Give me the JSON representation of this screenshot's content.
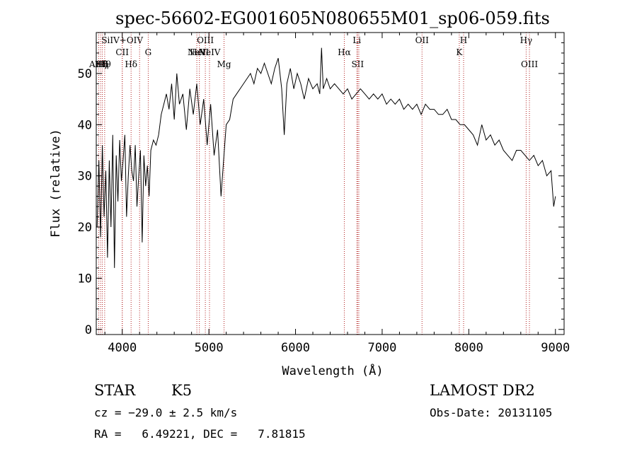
{
  "chart_data": {
    "type": "line",
    "title": "spec-56602-EG001605N080655M01_sp06-059.fits",
    "xlabel": "Wavelength (Å)",
    "ylabel": "Flux (relative)",
    "xlim": [
      3700,
      9100
    ],
    "ylim": [
      -1,
      58
    ],
    "xticks": [
      4000,
      5000,
      6000,
      7000,
      8000,
      9000
    ],
    "yticks": [
      0,
      10,
      20,
      30,
      40,
      50
    ],
    "grid": false,
    "line_color": "#000000",
    "marker_color": "#b22222",
    "series": [
      {
        "x": [
          3710,
          3730,
          3750,
          3770,
          3790,
          3810,
          3830,
          3850,
          3870,
          3890,
          3910,
          3930,
          3950,
          3970,
          3990,
          4010,
          4030,
          4050,
          4070,
          4090,
          4110,
          4130,
          4150,
          4170,
          4190,
          4210,
          4230,
          4250,
          4270,
          4290,
          4310,
          4330,
          4360,
          4390,
          4420,
          4450,
          4480,
          4510,
          4540,
          4570,
          4600,
          4630,
          4660,
          4700,
          4740,
          4780,
          4820,
          4860,
          4900,
          4940,
          4980,
          5020,
          5060,
          5100,
          5140,
          5170,
          5200,
          5240,
          5280,
          5320,
          5360,
          5400,
          5440,
          5480,
          5520,
          5560,
          5600,
          5640,
          5680,
          5720,
          5760,
          5800,
          5840,
          5870,
          5900,
          5940,
          5980,
          6020,
          6060,
          6100,
          6150,
          6200,
          6250,
          6280,
          6300,
          6320,
          6360,
          6400,
          6450,
          6500,
          6550,
          6600,
          6650,
          6700,
          6750,
          6800,
          6850,
          6900,
          6950,
          7000,
          7050,
          7100,
          7150,
          7200,
          7250,
          7300,
          7350,
          7400,
          7450,
          7500,
          7550,
          7600,
          7650,
          7700,
          7750,
          7800,
          7850,
          7900,
          7950,
          8000,
          8050,
          8100,
          8150,
          8200,
          8250,
          8300,
          8350,
          8400,
          8450,
          8500,
          8550,
          8600,
          8650,
          8700,
          8750,
          8800,
          8850,
          8900,
          8950,
          8980,
          9000
        ],
        "values": [
          20,
          33,
          18,
          36,
          22,
          31,
          14,
          33,
          20,
          38,
          12,
          34,
          25,
          37,
          29,
          33,
          38,
          22,
          30,
          36,
          31,
          29,
          36,
          24,
          30,
          35,
          17,
          34,
          28,
          32,
          26,
          35,
          37,
          36,
          38,
          42,
          44,
          46,
          43,
          48,
          41,
          50,
          44,
          46,
          39,
          47,
          42,
          48,
          40,
          45,
          36,
          44,
          34,
          39,
          26,
          33,
          40,
          41,
          45,
          46,
          47,
          48,
          49,
          50,
          48,
          51,
          50,
          52,
          50,
          48,
          51,
          53,
          47,
          38,
          48,
          51,
          47,
          50,
          48,
          45,
          49,
          47,
          48,
          46,
          55,
          47,
          49,
          47,
          48,
          47,
          46,
          47,
          45,
          46,
          47,
          46,
          45,
          46,
          45,
          46,
          44,
          45,
          44,
          45,
          43,
          44,
          43,
          44,
          42,
          44,
          43,
          43,
          42,
          42,
          43,
          41,
          41,
          40,
          40,
          39,
          38,
          36,
          40,
          37,
          38,
          36,
          37,
          35,
          34,
          33,
          35,
          35,
          34,
          33,
          34,
          32,
          33,
          30,
          31,
          24,
          26
        ]
      }
    ],
    "line_markers": [
      {
        "x": 3728,
        "label": "AlIII",
        "row": "low"
      },
      {
        "x": 3750,
        "label": "Hζ",
        "row": "low"
      },
      {
        "x": 3770,
        "label": "Hη",
        "row": "low"
      },
      {
        "x": 3797,
        "label": "Hθ",
        "row": "low"
      },
      {
        "x": 4000,
        "label": "SiIV+OIV",
        "row": "top"
      },
      {
        "x": 4000,
        "label": "CII",
        "row": "mid"
      },
      {
        "x": 4102,
        "label": "Hδ",
        "row": "low"
      },
      {
        "x": 4200,
        "label": "",
        "row": "none"
      },
      {
        "x": 4300,
        "label": "G",
        "row": "mid"
      },
      {
        "x": 4861,
        "label": "NeV",
        "row": "mid"
      },
      {
        "x": 4890,
        "label": "HeII",
        "row": "mid"
      },
      {
        "x": 4959,
        "label": "OIII",
        "row": "top"
      },
      {
        "x": 5007,
        "label": "NeIV",
        "row": "mid"
      },
      {
        "x": 5175,
        "label": "Mg",
        "row": "low"
      },
      {
        "x": 6563,
        "label": "Hα",
        "row": "mid"
      },
      {
        "x": 6708,
        "label": "Li",
        "row": "top"
      },
      {
        "x": 6717,
        "label": "SII",
        "row": "low"
      },
      {
        "x": 6731,
        "label": "",
        "row": "none"
      },
      {
        "x": 7460,
        "label": "OII",
        "row": "top"
      },
      {
        "x": 7890,
        "label": "K",
        "row": "mid"
      },
      {
        "x": 7940,
        "label": "H",
        "row": "top"
      },
      {
        "x": 8662,
        "label": "Hγ",
        "row": "top"
      },
      {
        "x": 8700,
        "label": "OIII",
        "row": "low"
      }
    ]
  },
  "info": {
    "class_label": "STAR",
    "subclass_label": "K5",
    "cz": "cz = −29.0 ± 2.5 km/s",
    "coords": "RA =   6.49221, DEC =   7.81815",
    "survey": "LAMOST DR2",
    "obs_date": "Obs-Date: 20131105"
  }
}
